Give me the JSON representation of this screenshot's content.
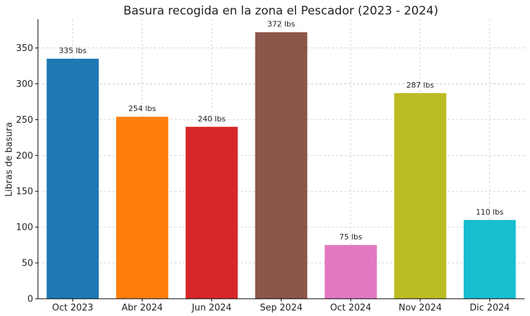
{
  "chart_data": {
    "type": "bar",
    "title": "Basura recogida en la zona el Pescador (2023 - 2024)",
    "xlabel": "",
    "ylabel": "Libras de basura",
    "ylim": [
      0,
      390
    ],
    "yticks": [
      0,
      50,
      100,
      150,
      200,
      250,
      300,
      350
    ],
    "grid": true,
    "categories": [
      "Oct 2023",
      "Abr 2024",
      "Jun 2024",
      "Sep 2024",
      "Oct 2024",
      "Nov 2024",
      "Dic 2024"
    ],
    "values": [
      335,
      254,
      240,
      372,
      75,
      287,
      110
    ],
    "data_labels": [
      "335 lbs",
      "254 lbs",
      "240 lbs",
      "372 lbs",
      "75 lbs",
      "287 lbs",
      "110 lbs"
    ],
    "colors": [
      "#1f77b4",
      "#ff7f0e",
      "#d62728",
      "#8c564b",
      "#e377c2",
      "#bcbd22",
      "#17becf"
    ]
  }
}
